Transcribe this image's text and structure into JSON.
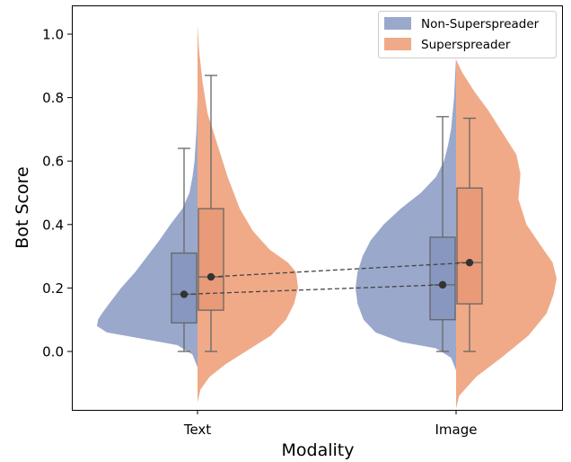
{
  "chart_data": {
    "type": "violin",
    "title": "",
    "xlabel": "Modality",
    "ylabel": "Bot Score",
    "categories": [
      "Text",
      "Image"
    ],
    "ylim": [
      -0.18,
      1.08
    ],
    "yticks": [
      "0.0",
      "0.2",
      "0.4",
      "0.6",
      "0.8",
      "1.0"
    ],
    "legend": {
      "position": "upper right",
      "entries": [
        "Non-Superspreader",
        "Superspreader"
      ]
    },
    "series": [
      {
        "name": "Non-Superspreader",
        "color": "#9aa8cc",
        "box_color": "#8797c0",
        "violins": [
          {
            "category": "Text",
            "min": 0.0,
            "q1": 0.09,
            "median": 0.18,
            "q3": 0.31,
            "max": 0.64,
            "mean": 0.18,
            "density": [
              [
                -0.05,
                0.0
              ],
              [
                -0.01,
                0.05
              ],
              [
                0.02,
                0.2
              ],
              [
                0.04,
                0.55
              ],
              [
                0.06,
                0.9
              ],
              [
                0.08,
                1.0
              ],
              [
                0.1,
                0.99
              ],
              [
                0.12,
                0.95
              ],
              [
                0.15,
                0.88
              ],
              [
                0.2,
                0.76
              ],
              [
                0.25,
                0.62
              ],
              [
                0.3,
                0.5
              ],
              [
                0.35,
                0.38
              ],
              [
                0.4,
                0.27
              ],
              [
                0.45,
                0.15
              ],
              [
                0.5,
                0.08
              ],
              [
                0.55,
                0.05
              ],
              [
                0.6,
                0.03
              ],
              [
                0.7,
                0.01
              ],
              [
                0.8,
                0.0
              ]
            ]
          },
          {
            "category": "Image",
            "min": 0.0,
            "q1": 0.1,
            "median": 0.21,
            "q3": 0.36,
            "max": 0.74,
            "mean": 0.21,
            "density": [
              [
                -0.06,
                0.0
              ],
              [
                -0.02,
                0.05
              ],
              [
                0.01,
                0.2
              ],
              [
                0.03,
                0.55
              ],
              [
                0.06,
                0.8
              ],
              [
                0.1,
                0.92
              ],
              [
                0.15,
                0.98
              ],
              [
                0.2,
                1.0
              ],
              [
                0.25,
                0.98
              ],
              [
                0.3,
                0.93
              ],
              [
                0.35,
                0.85
              ],
              [
                0.4,
                0.72
              ],
              [
                0.45,
                0.55
              ],
              [
                0.5,
                0.35
              ],
              [
                0.55,
                0.2
              ],
              [
                0.6,
                0.12
              ],
              [
                0.65,
                0.08
              ],
              [
                0.7,
                0.05
              ],
              [
                0.8,
                0.02
              ],
              [
                0.93,
                0.0
              ]
            ]
          }
        ]
      },
      {
        "name": "Superspreader",
        "color": "#f0aa88",
        "box_color": "#e99a78",
        "violins": [
          {
            "category": "Text",
            "min": 0.0,
            "q1": 0.13,
            "median": 0.235,
            "q3": 0.45,
            "max": 0.87,
            "mean": 0.235,
            "density": [
              [
                -0.16,
                0.0
              ],
              [
                -0.12,
                0.03
              ],
              [
                -0.08,
                0.12
              ],
              [
                -0.04,
                0.28
              ],
              [
                0.0,
                0.48
              ],
              [
                0.05,
                0.73
              ],
              [
                0.1,
                0.88
              ],
              [
                0.15,
                0.96
              ],
              [
                0.2,
                1.0
              ],
              [
                0.25,
                0.98
              ],
              [
                0.28,
                0.9
              ],
              [
                0.32,
                0.72
              ],
              [
                0.38,
                0.55
              ],
              [
                0.45,
                0.42
              ],
              [
                0.55,
                0.3
              ],
              [
                0.65,
                0.2
              ],
              [
                0.75,
                0.1
              ],
              [
                0.85,
                0.05
              ],
              [
                0.95,
                0.015
              ],
              [
                1.03,
                0.0
              ]
            ]
          },
          {
            "category": "Image",
            "min": 0.0,
            "q1": 0.15,
            "median": 0.28,
            "q3": 0.515,
            "max": 0.735,
            "mean": 0.28,
            "density": [
              [
                -0.18,
                0.0
              ],
              [
                -0.14,
                0.03
              ],
              [
                -0.08,
                0.2
              ],
              [
                -0.02,
                0.45
              ],
              [
                0.05,
                0.72
              ],
              [
                0.12,
                0.9
              ],
              [
                0.18,
                0.97
              ],
              [
                0.23,
                1.0
              ],
              [
                0.28,
                0.96
              ],
              [
                0.33,
                0.85
              ],
              [
                0.4,
                0.7
              ],
              [
                0.48,
                0.62
              ],
              [
                0.56,
                0.64
              ],
              [
                0.62,
                0.6
              ],
              [
                0.7,
                0.44
              ],
              [
                0.76,
                0.32
              ],
              [
                0.82,
                0.18
              ],
              [
                0.88,
                0.06
              ],
              [
                0.92,
                0.0
              ]
            ]
          }
        ]
      }
    ]
  }
}
